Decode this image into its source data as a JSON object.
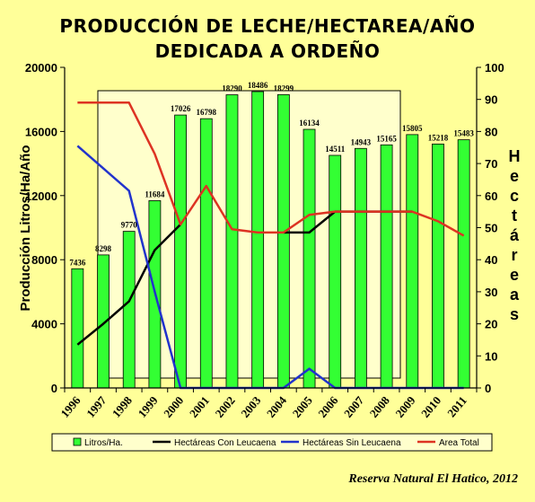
{
  "chart_data": {
    "type": "bar",
    "title_lines": [
      "PRODUCCIÓN DE LECHE/HECTAREA/AÑO",
      "DEDICADA A ORDEÑO"
    ],
    "ylabel": "Producción Litros/Ha/Año",
    "y2label": "Hectáreas",
    "ylim": [
      0,
      20000
    ],
    "y2lim": [
      0,
      100
    ],
    "yticks": [
      "0",
      "4000",
      "8000",
      "12000",
      "16000",
      "20000"
    ],
    "y2ticks": [
      "0",
      "10",
      "20",
      "30",
      "40",
      "50",
      "60",
      "70",
      "80",
      "90",
      "100"
    ],
    "categories": [
      "1996",
      "1997",
      "1998",
      "1999",
      "2000",
      "2001",
      "2002",
      "2003",
      "2004",
      "2005",
      "2006",
      "2007",
      "2008",
      "2009",
      "2010",
      "2011"
    ],
    "bars": {
      "name": "Litros/Ha.",
      "color": "#33ff33",
      "values": [
        7436,
        8298,
        9770,
        11684,
        17026,
        16798,
        18290,
        18486,
        18299,
        16134,
        14511,
        14943,
        15165,
        15805,
        15218,
        15483
      ],
      "labels": [
        "7436",
        "8298",
        "9770",
        "11684",
        "17026",
        "16798",
        "18290",
        "18486",
        "18299",
        "16134",
        "14511",
        "14943",
        "15165",
        "15805",
        "15218",
        "15483"
      ]
    },
    "series": [
      {
        "name": "Hectáreas Con Leucaena",
        "color": "#000000",
        "axis": "right",
        "values": [
          13.5,
          20,
          27,
          43,
          51,
          null,
          null,
          null,
          48.5,
          48.5,
          55,
          55,
          55,
          55,
          null,
          null
        ]
      },
      {
        "name": "Hectáreas Sin Leucaena",
        "color": "#2233cc",
        "axis": "right",
        "values": [
          75.5,
          68.5,
          61.5,
          30,
          0,
          0,
          0,
          0,
          0,
          6,
          0,
          0,
          0,
          0,
          0,
          0
        ]
      },
      {
        "name": "Area Total",
        "color": "#dd3322",
        "axis": "right",
        "values": [
          89,
          89,
          89,
          73,
          51,
          63,
          49.5,
          48.5,
          48.5,
          54,
          55,
          55,
          55,
          55,
          52,
          47.5
        ]
      }
    ],
    "legend": [
      "Litros/Ha.",
      "Hectáreas Con Leucaena",
      "Hectáreas Sin Leucaena",
      "Area Total"
    ],
    "legend_position": "bottom",
    "source": "Reserva Natural El Hatico, 2012"
  }
}
